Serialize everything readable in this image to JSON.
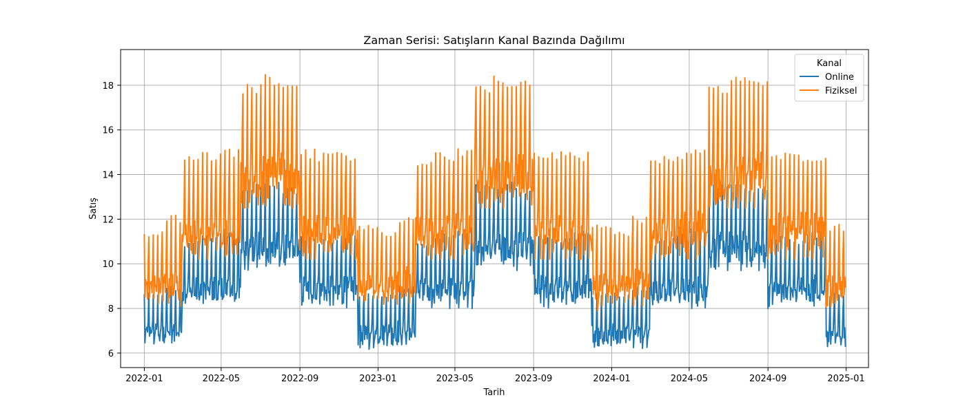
{
  "chart_data": {
    "type": "line",
    "title": "Zaman Serisi: Satışların Kanal Bazında Dağılımı",
    "xlabel": "Tarih",
    "ylabel": "Satış",
    "x_range": [
      "2021-11-25",
      "2025-02-05"
    ],
    "ylim": [
      5.35,
      19.6
    ],
    "x_ticks": [
      "2022-01",
      "2022-05",
      "2022-09",
      "2023-01",
      "2023-05",
      "2023-09",
      "2024-01",
      "2024-05",
      "2024-09",
      "2025-01"
    ],
    "y_ticks": [
      "6",
      "8",
      "10",
      "12",
      "14",
      "16",
      "18"
    ],
    "grid": true,
    "legend": {
      "title": "Kanal",
      "placement": "top-right"
    },
    "x_start": "2022-01-01",
    "x_end": "2024-12-31",
    "series": [
      {
        "name": "Online",
        "color": "#1f77b4",
        "monthly_low": [
          6.5,
          6.5,
          8.3,
          8.3,
          8.3,
          10.0,
          10.0,
          10.0,
          8.3,
          8.3,
          8.3,
          6.4
        ],
        "monthly_high": [
          8.6,
          8.9,
          10.9,
          11.2,
          11.5,
          13.4,
          13.5,
          13.3,
          11.1,
          11.0,
          11.3,
          8.6
        ]
      },
      {
        "name": "Fiziksel",
        "color": "#ff7f0e",
        "monthly_low": [
          8.4,
          8.4,
          10.5,
          10.5,
          10.5,
          12.8,
          12.8,
          12.8,
          10.5,
          10.5,
          10.5,
          8.2
        ],
        "monthly_high": [
          11.3,
          12.0,
          14.6,
          14.8,
          15.0,
          17.8,
          18.2,
          18.0,
          14.9,
          14.8,
          14.8,
          11.6
        ]
      }
    ]
  }
}
